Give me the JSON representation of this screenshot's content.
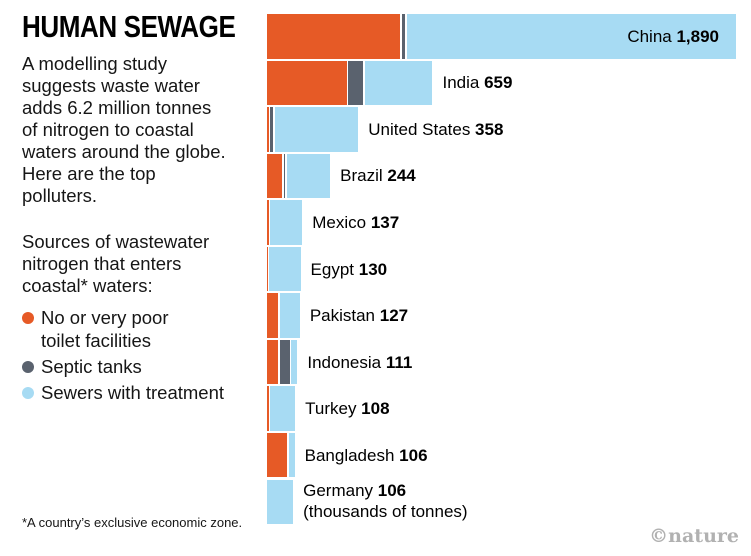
{
  "title": "HUMAN SEWAGE",
  "intro": "A modelling study\nsuggests waste water\nadds 6.2 million tonnes\nof nitrogen to coastal\nwaters around the globe.\nHere are the top\npolluters.",
  "legend": {
    "header": "Sources of wastewater\nnitrogen that enters\ncoastal* waters:",
    "items": [
      {
        "key": "toilet",
        "label": "No or very poor\ntoilet facilities",
        "color": "#E65A26"
      },
      {
        "key": "septic",
        "label": "Septic tanks",
        "color": "#5A626E"
      },
      {
        "key": "sewer",
        "label": "Sewers with treatment",
        "color": "#A7DBF3"
      }
    ]
  },
  "footnote": "*A country’s exclusive economic zone.",
  "credit": "©nature",
  "chart_data": {
    "type": "bar",
    "orientation": "horizontal",
    "stacked": true,
    "title": "HUMAN SEWAGE",
    "unit_note": "(thousands of tonnes)",
    "xlim": [
      0,
      1890
    ],
    "grid": false,
    "legend_position": "left",
    "categories": [
      "China",
      "India",
      "United States",
      "Brazil",
      "Mexico",
      "Egypt",
      "Pakistan",
      "Indonesia",
      "Turkey",
      "Bangladesh",
      "Germany"
    ],
    "totals": [
      1890,
      659,
      358,
      244,
      137,
      130,
      127,
      111,
      108,
      106,
      106
    ],
    "total_labels": [
      "1,890",
      "659",
      "358",
      "244",
      "137",
      "130",
      "127",
      "111",
      "108",
      "106",
      "106"
    ],
    "series": [
      {
        "key": "toilet",
        "name": "No or very poor toilet facilities",
        "color": "#E65A26",
        "values": [
          540,
          324,
          8,
          61,
          8,
          3,
          46,
          45,
          8,
          83,
          0
        ]
      },
      {
        "key": "septic",
        "name": "Septic tanks",
        "color": "#5A626E",
        "values": [
          14,
          61,
          12,
          6,
          0,
          0,
          0,
          42,
          0,
          0,
          0
        ]
      },
      {
        "key": "sewer",
        "name": "Sewers with treatment",
        "color": "#A7DBF3",
        "values": [
          1336,
          274,
          338,
          177,
          129,
          127,
          81,
          24,
          100,
          23,
          106
        ]
      }
    ]
  }
}
